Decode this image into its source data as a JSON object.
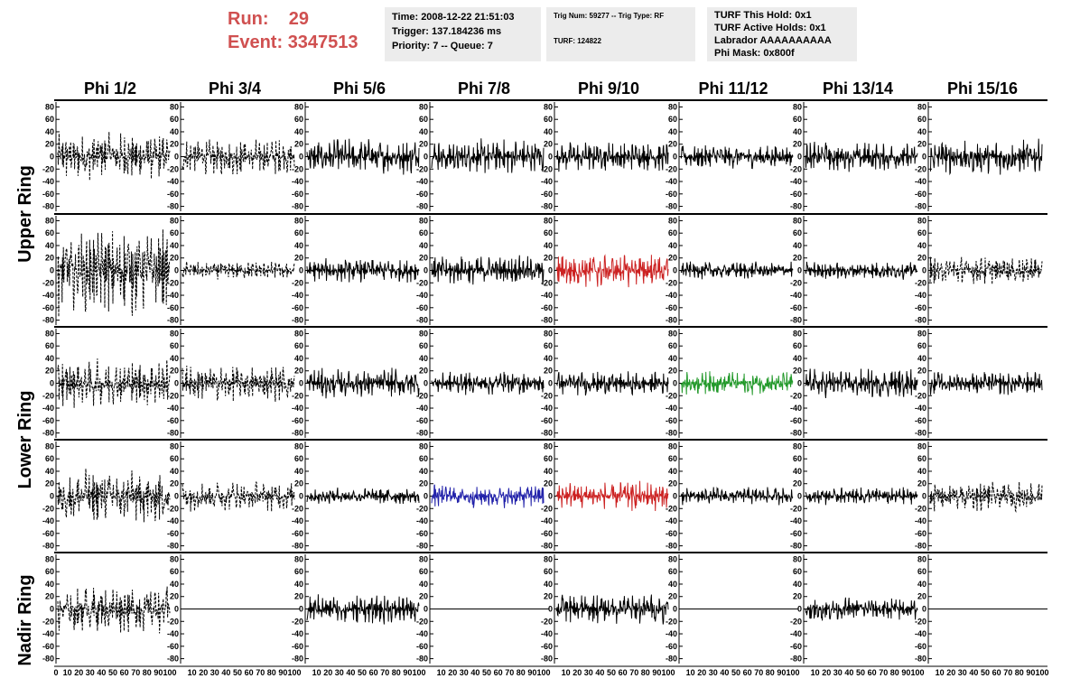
{
  "run": {
    "run_label": "Run:",
    "run_value": "29",
    "event_label": "Event:",
    "event_value": "3347513"
  },
  "timing": {
    "time": "Time: 2008-12-22 21:51:03",
    "trigger": "Trigger: 137.184236 ms",
    "priority": "Priority: 7 -- Queue: 7"
  },
  "trig": {
    "line1": "Trig Num: 59277 -- Trig Type: RF",
    "line2": "TURF: 124822"
  },
  "turf": {
    "this_hold": "TURF This Hold: 0x1",
    "active_holds": "TURF Active Holds: 0x1",
    "labrador": "Labrador AAAAAAAAAA",
    "phi_mask": "Phi Mask: 0x800f"
  },
  "columns": [
    "Phi 1/2",
    "Phi 3/4",
    "Phi 5/6",
    "Phi 7/8",
    "Phi 9/10",
    "Phi 11/12",
    "Phi 13/14",
    "Phi 15/16"
  ],
  "ring_labels": [
    "Upper Ring",
    "Lower Ring",
    "Nadir Ring"
  ],
  "colors": {
    "header_red": "#d05050",
    "info_bg": "#ececec",
    "red": "#cc2222",
    "blue": "#2222aa",
    "green": "#22992a",
    "black": "#000000"
  },
  "chart_data": {
    "type": "line",
    "title": "",
    "xlabel": "",
    "ylabel": "",
    "ylim": [
      -85,
      85
    ],
    "y_ticks": [
      80,
      60,
      40,
      20,
      0,
      -20,
      -40,
      -60,
      -80
    ],
    "x_ticks_first": [
      "0",
      "10",
      "20",
      "30",
      "40",
      "50",
      "60",
      "70",
      "80",
      "90",
      "100"
    ],
    "x_ticks_other": [
      "10",
      "20",
      "30",
      "40",
      "50",
      "60",
      "70",
      "80",
      "90",
      "100"
    ],
    "x_range": [
      0,
      100
    ],
    "rows": [
      {
        "styles": [
          "dashed",
          "dashed",
          "solid",
          "solid",
          "solid",
          "solid",
          "solid",
          "solid"
        ],
        "colors": [
          "black",
          "black",
          "black",
          "black",
          "black",
          "black",
          "black",
          "black"
        ],
        "amplitudes": [
          40,
          30,
          30,
          30,
          25,
          20,
          25,
          30
        ]
      },
      {
        "styles": [
          "dashed",
          "dashed",
          "solid",
          "solid",
          "solid",
          "solid",
          "solid",
          "dashed"
        ],
        "colors": [
          "black",
          "black",
          "black",
          "black",
          "red",
          "black",
          "black",
          "black"
        ],
        "amplitudes": [
          75,
          15,
          20,
          25,
          30,
          15,
          15,
          25
        ]
      },
      {
        "styles": [
          "dashed",
          "dashed",
          "solid",
          "solid",
          "solid",
          "solid",
          "solid",
          "solid"
        ],
        "colors": [
          "black",
          "black",
          "black",
          "black",
          "black",
          "green",
          "black",
          "black"
        ],
        "amplitudes": [
          40,
          30,
          25,
          20,
          20,
          20,
          25,
          20
        ]
      },
      {
        "styles": [
          "dashed",
          "dashed",
          "solid",
          "solid",
          "solid",
          "solid",
          "solid",
          "dashed"
        ],
        "colors": [
          "black",
          "black",
          "black",
          "blue",
          "red",
          "black",
          "black",
          "black"
        ],
        "amplitudes": [
          45,
          25,
          15,
          20,
          25,
          15,
          15,
          25
        ]
      },
      {
        "styles": [
          "dashed",
          "flat",
          "solid",
          "flat",
          "solid",
          "flat",
          "solid",
          "flat"
        ],
        "colors": [
          "black",
          "black",
          "black",
          "black",
          "black",
          "black",
          "black",
          "black"
        ],
        "amplitudes": [
          40,
          0,
          25,
          0,
          25,
          0,
          20,
          0
        ]
      }
    ]
  }
}
